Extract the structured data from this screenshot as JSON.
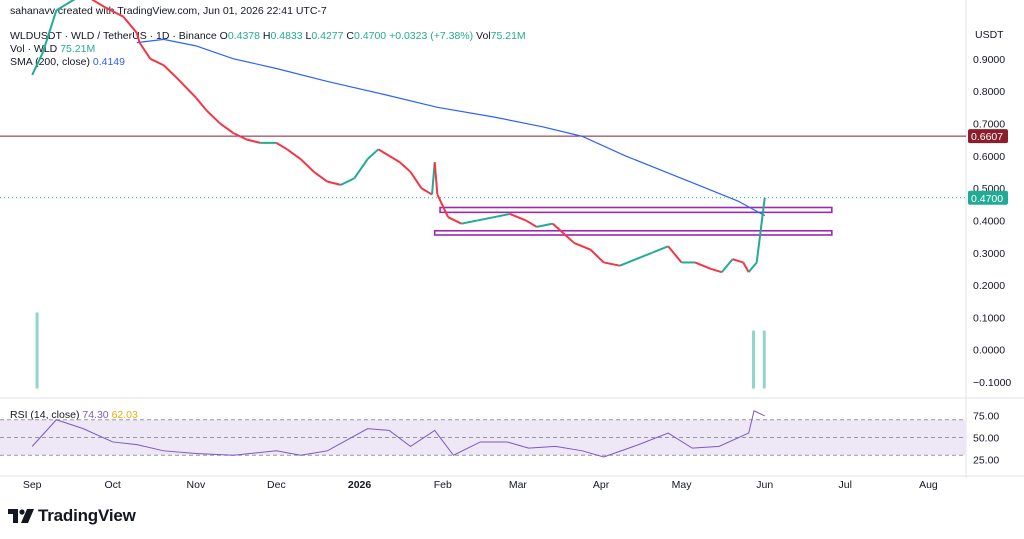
{
  "credit": "sahanavv created with TradingView.com, Jun 01, 2026 22:41 UTC-7",
  "legend": {
    "symbol": "WLDUSDT · WLD / TetherUS · 1D · Binance",
    "o_label": "O",
    "o": "0.4378",
    "h_label": "H",
    "h": "0.4833",
    "l_label": "L",
    "l": "0.4277",
    "c_label": "C",
    "c": "0.4700",
    "chg": "+0.0323 (+7.38%)",
    "vol_label": "Vol",
    "vol": "75.21M",
    "vol_line_label": "Vol · WLD",
    "vol_line_value": "75.21M",
    "sma_label": "SMA (200, close)",
    "sma_value": "0.4149"
  },
  "rsi": {
    "label": "RSI (14, close)",
    "rsi_value": "74.30",
    "ma_value": "62.03"
  },
  "logo_text": "TradingView",
  "colors": {
    "up": "#22ab94",
    "down": "#f23645",
    "sma": "#2962ff",
    "resistance": "#8b1e2b",
    "box": "#9c27b0",
    "rsi": "#7e57c2",
    "rsi_ma": "#e6b000",
    "rsi_band": "#ede7f6"
  },
  "chart_data": {
    "type": "line",
    "y_axis_unit": "USDT",
    "y_ticks": [
      "0.9000",
      "0.8000",
      "0.7000",
      "0.6000",
      "0.5000",
      "0.4000",
      "0.3000",
      "0.2000",
      "0.1000",
      "0.0000",
      "−0.1000"
    ],
    "y_tick_values": [
      0.9,
      0.8,
      0.7,
      0.6,
      0.5,
      0.4,
      0.3,
      0.2,
      0.1,
      0.0,
      -0.1
    ],
    "ylim": [
      -0.14,
      1.02
    ],
    "x_ticks": [
      "Sep",
      "Oct",
      "Nov",
      "Dec",
      "2026",
      "Feb",
      "Mar",
      "Apr",
      "May",
      "Jun",
      "Jul",
      "Aug"
    ],
    "x_tick_dates": [
      "2025-09-01",
      "2025-10-01",
      "2025-11-01",
      "2025-12-01",
      "2026-01-01",
      "2026-02-01",
      "2026-03-01",
      "2026-04-01",
      "2026-05-01",
      "2026-06-01",
      "2026-07-01",
      "2026-08-01"
    ],
    "resistance_level": 0.6607,
    "resistance_label": "0.6607",
    "last_price": 0.47,
    "last_price_label": "0.4700",
    "zones": [
      {
        "from": "2026-01-31",
        "to": "2026-06-26",
        "low": 0.425,
        "high": 0.44
      },
      {
        "from": "2026-01-29",
        "to": "2026-06-26",
        "low": 0.355,
        "high": 0.368
      }
    ],
    "price_series": {
      "name": "WLDUSDT",
      "points": [
        [
          "2025-09-01",
          0.85
        ],
        [
          "2025-09-05",
          0.92
        ],
        [
          "2025-09-10",
          1.05
        ],
        [
          "2025-09-20",
          1.1
        ],
        [
          "2025-09-28",
          1.06
        ],
        [
          "2025-10-05",
          1.03
        ],
        [
          "2025-10-10",
          0.98
        ],
        [
          "2025-10-11",
          0.95
        ],
        [
          "2025-10-15",
          0.9
        ],
        [
          "2025-10-20",
          0.88
        ],
        [
          "2025-10-25",
          0.84
        ],
        [
          "2025-11-01",
          0.78
        ],
        [
          "2025-11-05",
          0.74
        ],
        [
          "2025-11-10",
          0.7
        ],
        [
          "2025-11-15",
          0.67
        ],
        [
          "2025-11-20",
          0.65
        ],
        [
          "2025-11-25",
          0.64
        ],
        [
          "2025-12-01",
          0.64
        ],
        [
          "2025-12-05",
          0.62
        ],
        [
          "2025-12-10",
          0.59
        ],
        [
          "2025-12-15",
          0.55
        ],
        [
          "2025-12-20",
          0.52
        ],
        [
          "2025-12-25",
          0.51
        ],
        [
          "2025-12-30",
          0.53
        ],
        [
          "2026-01-04",
          0.59
        ],
        [
          "2026-01-08",
          0.62
        ],
        [
          "2026-01-12",
          0.6
        ],
        [
          "2026-01-16",
          0.58
        ],
        [
          "2026-01-20",
          0.55
        ],
        [
          "2026-01-24",
          0.5
        ],
        [
          "2026-01-28",
          0.48
        ],
        [
          "2026-01-29",
          0.58
        ],
        [
          "2026-01-30",
          0.48
        ],
        [
          "2026-02-03",
          0.41
        ],
        [
          "2026-02-08",
          0.39
        ],
        [
          "2026-02-14",
          0.4
        ],
        [
          "2026-02-20",
          0.41
        ],
        [
          "2026-02-26",
          0.42
        ],
        [
          "2026-03-04",
          0.4
        ],
        [
          "2026-03-08",
          0.38
        ],
        [
          "2026-03-14",
          0.39
        ],
        [
          "2026-03-18",
          0.36
        ],
        [
          "2026-03-22",
          0.33
        ],
        [
          "2026-03-28",
          0.31
        ],
        [
          "2026-04-02",
          0.27
        ],
        [
          "2026-04-08",
          0.26
        ],
        [
          "2026-04-14",
          0.28
        ],
        [
          "2026-04-20",
          0.3
        ],
        [
          "2026-04-26",
          0.32
        ],
        [
          "2026-05-01",
          0.27
        ],
        [
          "2026-05-06",
          0.27
        ],
        [
          "2026-05-12",
          0.25
        ],
        [
          "2026-05-16",
          0.24
        ],
        [
          "2026-05-20",
          0.28
        ],
        [
          "2026-05-24",
          0.27
        ],
        [
          "2026-05-26",
          0.24
        ],
        [
          "2026-05-29",
          0.27
        ],
        [
          "2026-06-01",
          0.47
        ]
      ]
    },
    "sma_series": {
      "name": "SMA (200, close)",
      "points": [
        [
          "2025-10-10",
          0.95
        ],
        [
          "2025-10-20",
          0.96
        ],
        [
          "2025-11-01",
          0.94
        ],
        [
          "2025-11-15",
          0.9
        ],
        [
          "2025-12-01",
          0.87
        ],
        [
          "2025-12-20",
          0.83
        ],
        [
          "2026-01-10",
          0.79
        ],
        [
          "2026-01-30",
          0.75
        ],
        [
          "2026-02-20",
          0.72
        ],
        [
          "2026-03-10",
          0.69
        ],
        [
          "2026-03-25",
          0.66
        ],
        [
          "2026-04-10",
          0.6
        ],
        [
          "2026-04-25",
          0.55
        ],
        [
          "2026-05-10",
          0.5
        ],
        [
          "2026-05-22",
          0.46
        ],
        [
          "2026-06-01",
          0.415
        ]
      ]
    },
    "volume_spikes": [
      {
        "date": "2025-09-03",
        "level": 0.84
      },
      {
        "date": "2026-05-28",
        "level": 0.64
      },
      {
        "date": "2026-06-01",
        "level": 0.64
      }
    ],
    "rsi_series": {
      "name": "RSI (14, close)",
      "y_ticks": [
        "75.00",
        "50.00",
        "25.00"
      ],
      "points": [
        [
          "2025-09-01",
          40
        ],
        [
          "2025-09-10",
          70
        ],
        [
          "2025-09-20",
          60
        ],
        [
          "2025-10-01",
          45
        ],
        [
          "2025-10-10",
          42
        ],
        [
          "2025-10-20",
          35
        ],
        [
          "2025-11-01",
          32
        ],
        [
          "2025-11-15",
          30
        ],
        [
          "2025-12-01",
          35
        ],
        [
          "2025-12-10",
          30
        ],
        [
          "2025-12-20",
          35
        ],
        [
          "2026-01-04",
          60
        ],
        [
          "2026-01-12",
          58
        ],
        [
          "2026-01-20",
          40
        ],
        [
          "2026-01-29",
          58
        ],
        [
          "2026-02-05",
          30
        ],
        [
          "2026-02-15",
          45
        ],
        [
          "2026-02-25",
          45
        ],
        [
          "2026-03-05",
          38
        ],
        [
          "2026-03-15",
          40
        ],
        [
          "2026-03-25",
          35
        ],
        [
          "2026-04-02",
          28
        ],
        [
          "2026-04-15",
          42
        ],
        [
          "2026-04-26",
          55
        ],
        [
          "2026-05-05",
          38
        ],
        [
          "2026-05-15",
          40
        ],
        [
          "2026-05-26",
          55
        ],
        [
          "2026-05-28",
          80
        ],
        [
          "2026-06-01",
          74.3
        ]
      ]
    }
  }
}
